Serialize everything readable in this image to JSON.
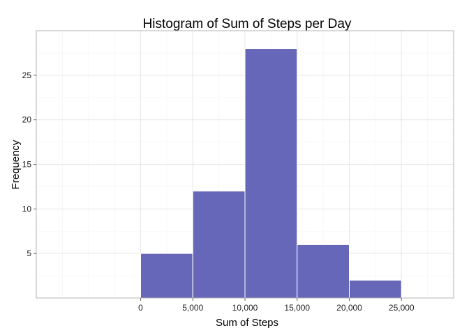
{
  "chart_data": {
    "type": "bar",
    "title": "Histogram of Sum of Steps per Day",
    "xlabel": "Sum of Steps",
    "ylabel": "Frequency",
    "bin_width": 5000,
    "bins": [
      {
        "start": 0,
        "end": 5000,
        "count": 5
      },
      {
        "start": 5000,
        "end": 10000,
        "count": 12
      },
      {
        "start": 10000,
        "end": 15000,
        "count": 28
      },
      {
        "start": 15000,
        "end": 20000,
        "count": 6
      },
      {
        "start": 20000,
        "end": 25000,
        "count": 2
      }
    ],
    "xlim": [
      -10000,
      30000
    ],
    "ylim": [
      0,
      30
    ],
    "x_ticks": [
      0,
      5000,
      10000,
      15000,
      20000,
      25000
    ],
    "x_tick_labels": [
      "0",
      "5,000",
      "10,000",
      "15,000",
      "20,000",
      "25,000"
    ],
    "y_ticks": [
      5,
      10,
      15,
      20,
      25
    ],
    "y_tick_labels": [
      "5",
      "10",
      "15",
      "20",
      "25"
    ],
    "grid": true,
    "legend": "none",
    "bar_color": "#6667b8"
  }
}
